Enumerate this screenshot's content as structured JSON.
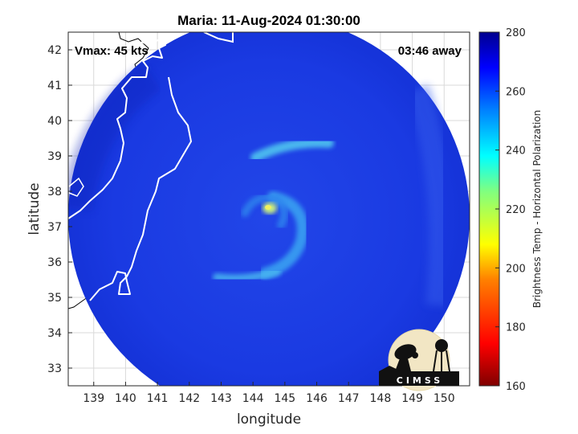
{
  "figure": {
    "title": "Maria: 11-Aug-2024 01:30:00",
    "vmax_label": "Vmax: 45 kts",
    "time_away_label": "03:46 away",
    "xlabel": "longitude",
    "ylabel": "latitude",
    "logo_text": "CIMSS"
  },
  "map": {
    "lon_range": [
      138.2,
      150.8
    ],
    "lat_range": [
      32.5,
      42.5
    ],
    "lon_ticks": [
      139,
      140,
      141,
      142,
      143,
      144,
      145,
      146,
      147,
      148,
      149,
      150
    ],
    "lat_ticks": [
      33,
      34,
      35,
      36,
      37,
      38,
      39,
      40,
      41,
      42
    ],
    "storm_center": {
      "lon": 144.5,
      "lat": 37.5
    },
    "swath_center": {
      "lon": 144.6,
      "lat": 37.6
    },
    "background_value": 262,
    "rain_bands": [
      {
        "name": "northern band",
        "lon": [
          144.5,
          146.3
        ],
        "lat": [
          38.9,
          39.3
        ],
        "min_temp": 245
      },
      {
        "name": "eyewall",
        "lon": [
          144.2,
          144.8
        ],
        "lat": [
          37.3,
          37.7
        ],
        "min_temp": 218
      },
      {
        "name": "spiral arm",
        "lon": [
          144.6,
          145.4
        ],
        "lat": [
          36.1,
          37.4
        ],
        "min_temp": 242
      },
      {
        "name": "southern band",
        "lon": [
          143.0,
          145.0
        ],
        "lat": [
          35.5,
          35.9
        ],
        "min_temp": 245
      }
    ],
    "coastline": "Honshu east coast (Japan)"
  },
  "colorbar": {
    "label": "Brightness Temp - Horizontal Polarization",
    "min": 160,
    "max": 280,
    "ticks": [
      280,
      260,
      240,
      220,
      200,
      180,
      160
    ],
    "colormap": "jet",
    "colors": [
      "#7f0000",
      "#ff0000",
      "#ff7f00",
      "#ffff00",
      "#7fff7f",
      "#00ffff",
      "#007fff",
      "#0000ff",
      "#00008f"
    ]
  },
  "colors": {
    "swath_base": "#1838e0",
    "swath_dark": "#0f22b8",
    "coastline": "#ffffff",
    "land_outline": "#000000",
    "grid": "#d9d9d9",
    "frame": "#262626"
  }
}
